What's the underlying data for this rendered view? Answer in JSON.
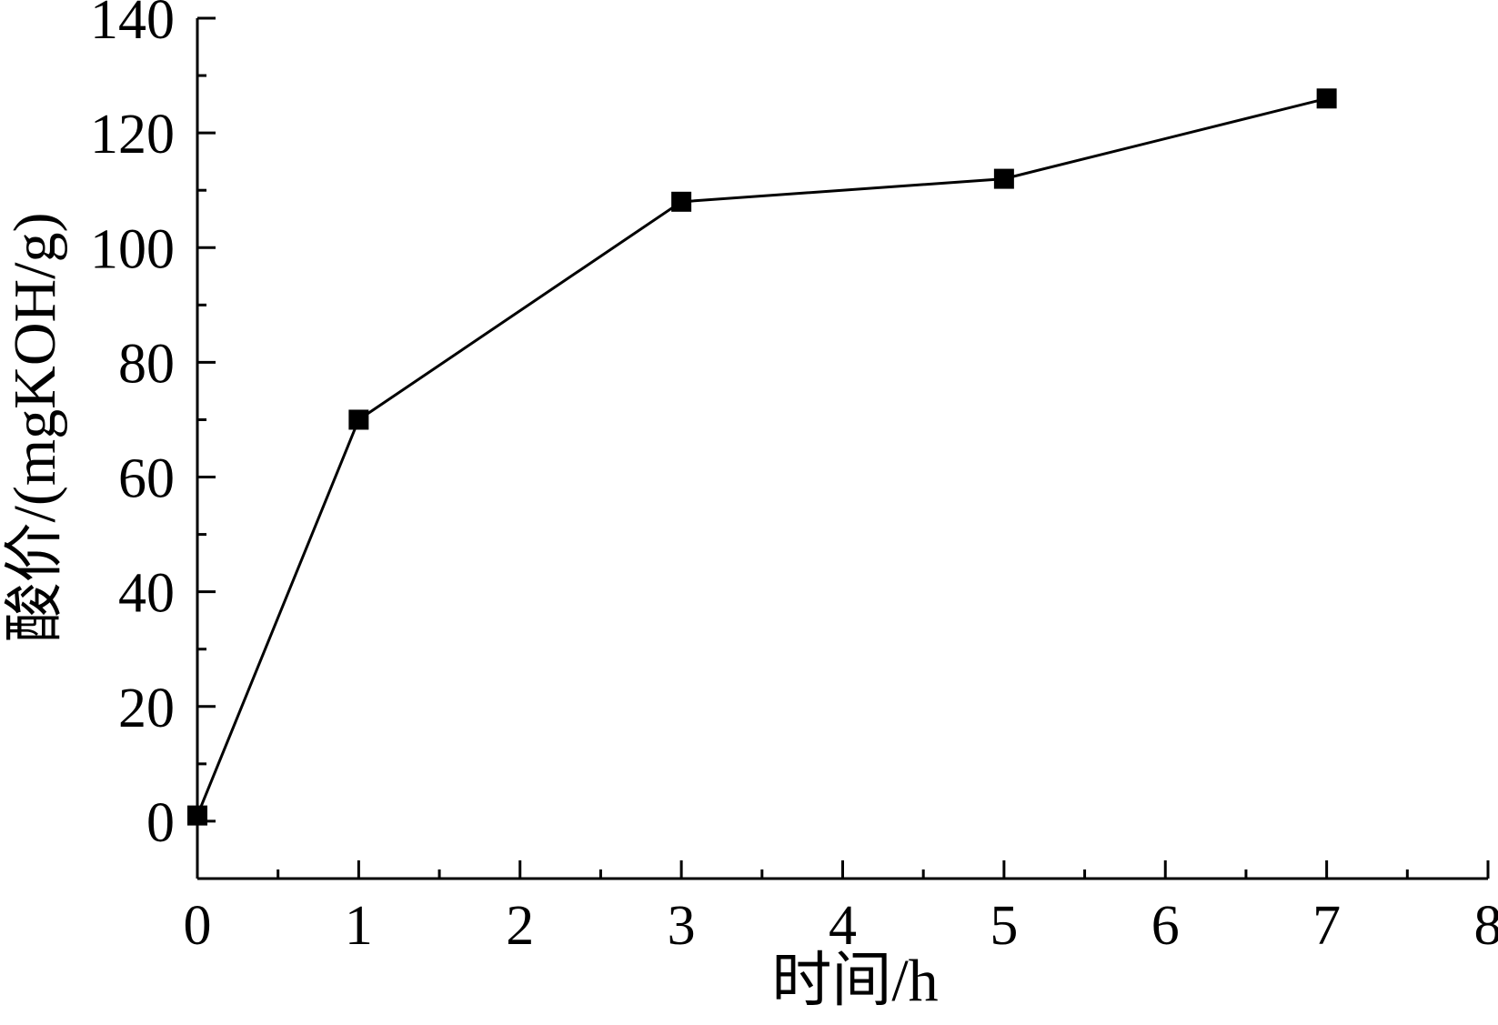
{
  "chart_data": {
    "type": "line",
    "title": "",
    "xlabel": "时间/h",
    "ylabel": "酸价/(mgKOH/g)",
    "xlim": [
      0,
      8
    ],
    "ylim": [
      -10,
      140
    ],
    "x_ticks": [
      0,
      1,
      2,
      3,
      4,
      5,
      6,
      7,
      8
    ],
    "y_ticks": [
      0,
      20,
      40,
      60,
      80,
      100,
      120,
      140
    ],
    "grid": false,
    "legend": "none",
    "series": [
      {
        "marker": "square",
        "color": "#000000",
        "x": [
          0,
          1,
          3,
          5,
          7
        ],
        "y": [
          1,
          70,
          108,
          112,
          126
        ]
      }
    ]
  }
}
